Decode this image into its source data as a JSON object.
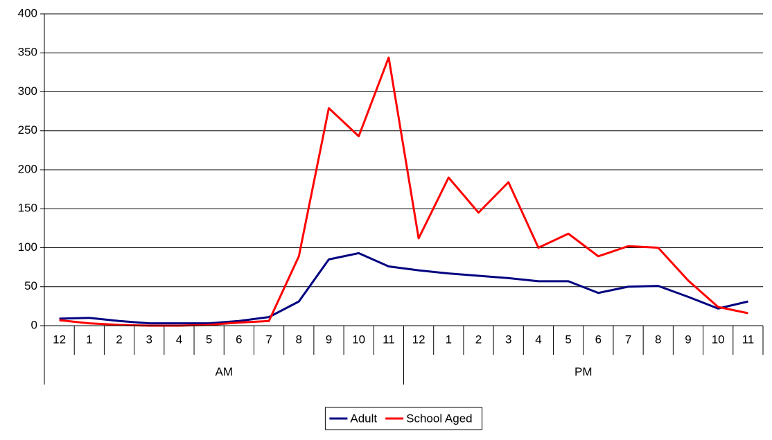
{
  "chart_data": {
    "type": "line",
    "categories": [
      "12",
      "1",
      "2",
      "3",
      "4",
      "5",
      "6",
      "7",
      "8",
      "9",
      "10",
      "11",
      "12",
      "1",
      "2",
      "3",
      "4",
      "5",
      "6",
      "7",
      "8",
      "9",
      "10",
      "11"
    ],
    "groups": [
      "AM",
      "PM"
    ],
    "series": [
      {
        "name": "Adult",
        "color": "#000080",
        "values": [
          9,
          10,
          6,
          3,
          3,
          3,
          6,
          11,
          31,
          85,
          93,
          76,
          71,
          67,
          64,
          61,
          57,
          57,
          42,
          50,
          51,
          37,
          22,
          31
        ]
      },
      {
        "name": "School Aged",
        "color": "#ff0000",
        "values": [
          7,
          3,
          1,
          0,
          0,
          1,
          4,
          6,
          89,
          279,
          243,
          344,
          112,
          190,
          145,
          184,
          100,
          118,
          89,
          102,
          100,
          58,
          24,
          16
        ]
      }
    ],
    "ylim": [
      0,
      400
    ],
    "yticks": [
      0,
      50,
      100,
      150,
      200,
      250,
      300,
      350,
      400
    ],
    "grid": true
  }
}
